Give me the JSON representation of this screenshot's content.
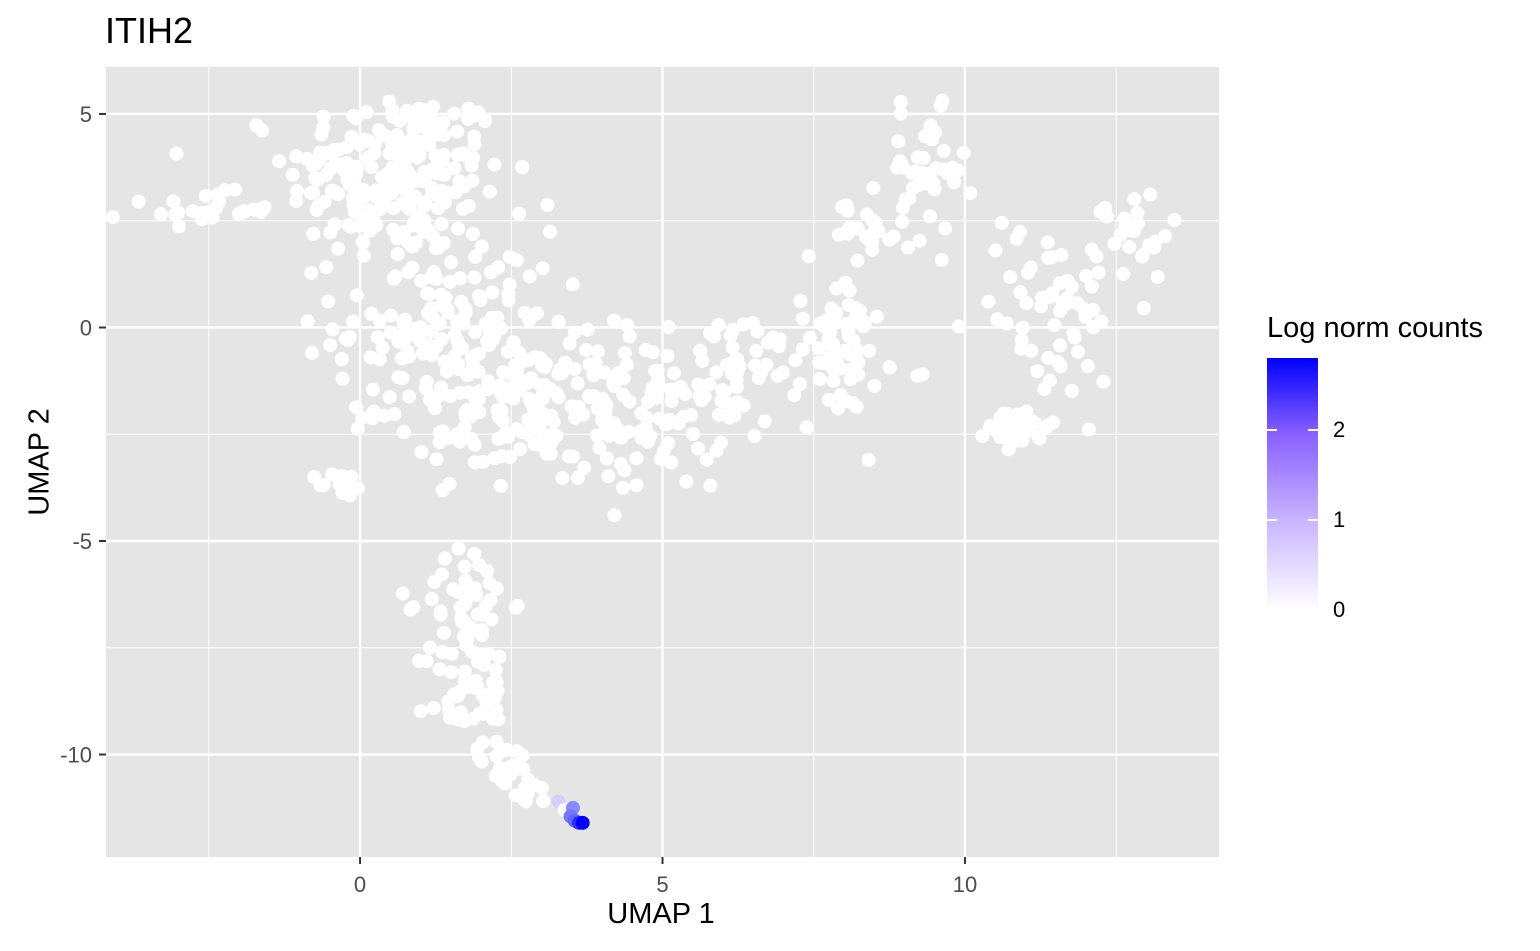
{
  "chart_data": {
    "type": "scatter",
    "title": "ITIH2",
    "xlabel": "UMAP 1",
    "ylabel": "UMAP 2",
    "xlim": [
      -4.2,
      14.2
    ],
    "ylim": [
      -12.4,
      6.1
    ],
    "x_ticks": [
      0,
      5,
      10
    ],
    "x_tick_labels": [
      "0",
      "5",
      "10"
    ],
    "y_ticks": [
      5,
      0,
      -5,
      -10
    ],
    "y_tick_labels": [
      "5",
      "0",
      "-5",
      "-10"
    ],
    "grid": true,
    "legend": {
      "title": "Log norm counts",
      "position": "right",
      "range": [
        0,
        2.8
      ],
      "ticks": [
        0,
        1,
        2
      ],
      "tick_labels": [
        "0",
        "1",
        "2"
      ],
      "low_color": "#ffffff",
      "high_color": "#0000ff"
    },
    "panel_color": "#e5e5e5",
    "grid_color": "#ffffff",
    "point_color_zero": "#ffffff",
    "clusters": [
      {
        "cx": 0.6,
        "cy": 3.6,
        "sx": 0.9,
        "sy": 1.0,
        "n": 220
      },
      {
        "cx": -2.6,
        "cy": 2.75,
        "sx": 0.6,
        "sy": 0.2,
        "n": 25
      },
      {
        "cx": 1.4,
        "cy": 0.1,
        "sx": 0.9,
        "sy": 1.1,
        "n": 140
      },
      {
        "cx": 2.3,
        "cy": -1.8,
        "sx": 1.0,
        "sy": 0.8,
        "n": 110
      },
      {
        "cx": 4.2,
        "cy": -2.2,
        "sx": 0.9,
        "sy": 0.8,
        "n": 100
      },
      {
        "cx": 6.3,
        "cy": -1.0,
        "sx": 1.0,
        "sy": 0.7,
        "n": 90
      },
      {
        "cx": 8.0,
        "cy": -0.4,
        "sx": 0.3,
        "sy": 0.9,
        "n": 45
      },
      {
        "cx": 8.3,
        "cy": 2.3,
        "sx": 0.5,
        "sy": 0.3,
        "n": 20
      },
      {
        "cx": 9.3,
        "cy": 3.6,
        "sx": 0.35,
        "sy": 0.7,
        "n": 45
      },
      {
        "cx": 11.4,
        "cy": 0.5,
        "sx": 0.7,
        "sy": 1.1,
        "n": 60
      },
      {
        "cx": 12.8,
        "cy": 2.2,
        "sx": 0.3,
        "sy": 0.5,
        "n": 25
      },
      {
        "cx": 10.9,
        "cy": -2.3,
        "sx": 0.25,
        "sy": 0.25,
        "n": 40
      },
      {
        "cx": -0.3,
        "cy": -3.7,
        "sx": 0.2,
        "sy": 0.15,
        "n": 15
      },
      {
        "cx": 1.8,
        "cy": -6.4,
        "sx": 0.35,
        "sy": 0.7,
        "n": 50
      },
      {
        "cx": 1.8,
        "cy": -8.6,
        "sx": 0.35,
        "sy": 0.7,
        "n": 45
      },
      {
        "cx": 2.4,
        "cy": -10.3,
        "sx": 0.3,
        "sy": 0.3,
        "n": 20
      },
      {
        "cx": 2.9,
        "cy": -10.9,
        "sx": 0.2,
        "sy": 0.15,
        "n": 8
      }
    ],
    "expressed_points": [
      {
        "x": 3.28,
        "y": -11.1,
        "value": 0.5
      },
      {
        "x": 3.38,
        "y": -11.3,
        "value": 0.0
      },
      {
        "x": 3.52,
        "y": -11.25,
        "value": 1.3
      },
      {
        "x": 3.48,
        "y": -11.45,
        "value": 1.5
      },
      {
        "x": 3.55,
        "y": -11.55,
        "value": 1.7
      },
      {
        "x": 3.62,
        "y": -11.6,
        "value": 2.3
      },
      {
        "x": 3.68,
        "y": -11.6,
        "value": 2.8
      }
    ]
  }
}
